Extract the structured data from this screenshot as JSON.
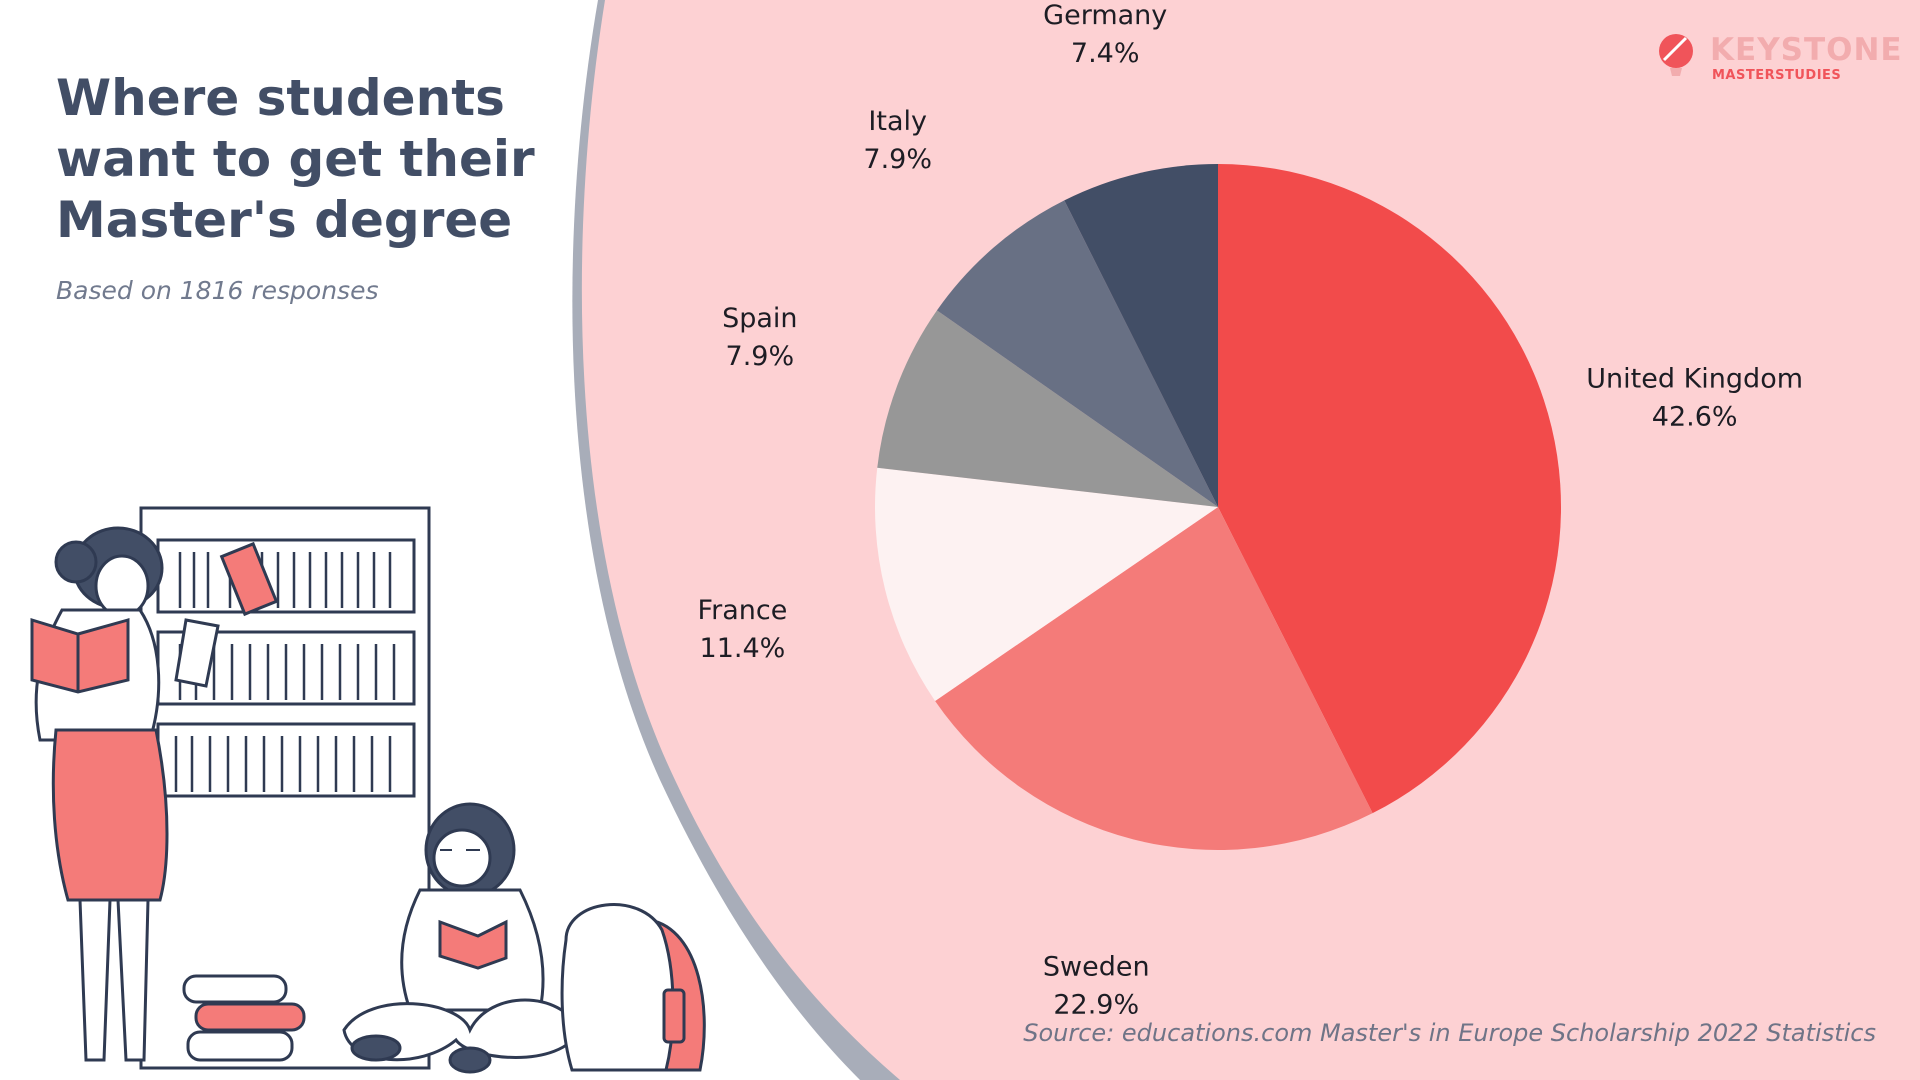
{
  "header": {
    "title_lines": [
      "Where students",
      "want to get their",
      "Master's degree"
    ],
    "subtitle": "Based on 1816 responses"
  },
  "brand": {
    "name": "KEYSTONE",
    "sub": "MASTERSTUDIES"
  },
  "footer": {
    "source": "Source: educations.com Master's in Europe Scholarship 2022 Statistics"
  },
  "colors": {
    "background_panel": "#fdd1d3",
    "panel_edge": "#a8adb9",
    "title": "#424e66"
  },
  "chart_data": {
    "type": "pie",
    "start_angle_deg": 0,
    "direction": "clockwise",
    "slices": [
      {
        "label": "United Kingdom",
        "value": 42.6,
        "value_label": "42.6%",
        "color": "#f24b4b"
      },
      {
        "label": "Sweden",
        "value": 22.9,
        "value_label": "22.9%",
        "color": "#f47b79"
      },
      {
        "label": "France",
        "value": 11.4,
        "value_label": "11.4%",
        "color": "#fdf2f2"
      },
      {
        "label": "Spain",
        "value": 7.9,
        "value_label": "7.9%",
        "color": "#979797"
      },
      {
        "label": "Italy",
        "value": 7.9,
        "value_label": "7.9%",
        "color": "#687084"
      },
      {
        "label": "Germany",
        "value": 7.4,
        "value_label": "7.4%",
        "color": "#424e66"
      }
    ]
  },
  "illustration": {
    "subject": "two-students-reading-books-icon"
  }
}
